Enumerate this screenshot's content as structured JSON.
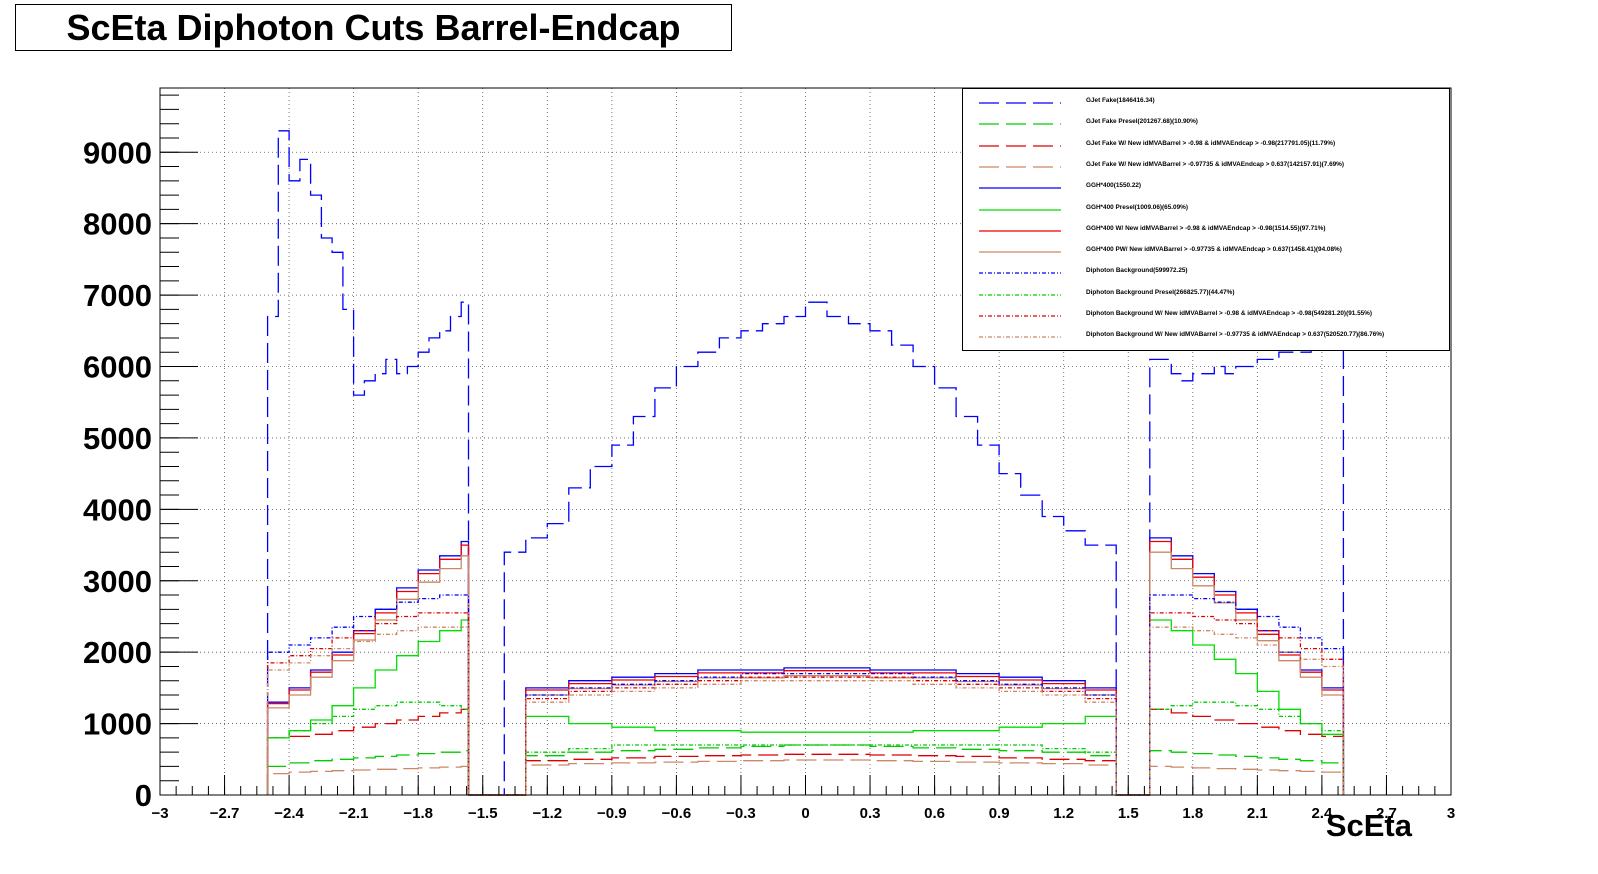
{
  "chart_data": {
    "type": "line",
    "title": "ScEta Diphoton Cuts Barrel-Endcap",
    "xlabel": "ScEta",
    "ylabel": "",
    "xlim": [
      -3,
      3
    ],
    "ylim": [
      0,
      9900
    ],
    "x_ticks": [
      -3,
      -2.7,
      -2.4,
      -2.1,
      -1.8,
      -1.5,
      -1.2,
      -0.9,
      -0.6,
      -0.3,
      0,
      0.3,
      0.6,
      0.9,
      1.2,
      1.5,
      1.8,
      2.1,
      2.4,
      2.7,
      3
    ],
    "x_tick_labels": [
      "−3",
      "−2.7",
      "−2.4",
      "−2.1",
      "−1.8",
      "−1.5",
      "−1.2",
      "−0.9",
      "−0.6",
      "−0.3",
      "0",
      "0.3",
      "0.6",
      "0.9",
      "1.2",
      "1.5",
      "1.8",
      "2.1",
      "2.4",
      "2.7",
      "3"
    ],
    "y_ticks": [
      0,
      1000,
      2000,
      3000,
      4000,
      5000,
      6000,
      7000,
      8000,
      9000
    ],
    "y_tick_labels": [
      "0",
      "1000",
      "2000",
      "3000",
      "4000",
      "5000",
      "6000",
      "7000",
      "8000",
      "9000"
    ],
    "grid": true,
    "legend_position": "top-right",
    "series": [
      {
        "name": "GJet Fake(1846416.34)",
        "color": "#0000ff",
        "dash": "long-dash",
        "x": [
          -2.5,
          -2.45,
          -2.4,
          -2.35,
          -2.3,
          -2.25,
          -2.2,
          -2.15,
          -2.1,
          -2.05,
          -2.0,
          -1.95,
          -1.9,
          -1.85,
          -1.8,
          -1.75,
          -1.7,
          -1.65,
          -1.6,
          -1.566,
          -1.4442,
          -1.4,
          -1.3,
          -1.2,
          -1.1,
          -1.0,
          -0.9,
          -0.8,
          -0.7,
          -0.6,
          -0.5,
          -0.4,
          -0.3,
          -0.2,
          -0.1,
          0.0,
          0.1,
          0.2,
          0.3,
          0.4,
          0.5,
          0.6,
          0.7,
          0.8,
          0.9,
          1.0,
          1.1,
          1.2,
          1.3,
          1.4442,
          1.566,
          1.6,
          1.65,
          1.7,
          1.75,
          1.8,
          1.85,
          1.9,
          1.95,
          2.0,
          2.05,
          2.1,
          2.15,
          2.2,
          2.25,
          2.3,
          2.35,
          2.4,
          2.45,
          2.5
        ],
        "y": [
          6700,
          9300,
          8600,
          8900,
          8400,
          7800,
          7600,
          6800,
          5600,
          5800,
          5900,
          6100,
          5900,
          6000,
          6200,
          6400,
          6500,
          6700,
          6900,
          0,
          0,
          3400,
          3600,
          3800,
          4300,
          4600,
          4900,
          5300,
          5700,
          6000,
          6200,
          6400,
          6500,
          6600,
          6700,
          6900,
          6700,
          6600,
          6500,
          6300,
          6000,
          5700,
          5300,
          4900,
          4500,
          4200,
          3900,
          3700,
          3500,
          0,
          0,
          6100,
          6100,
          5900,
          5800,
          5900,
          5900,
          6000,
          5900,
          6000,
          6000,
          6100,
          6100,
          6200,
          6200,
          6200,
          6300,
          6300,
          6300,
          0
        ]
      },
      {
        "name": "GJet Fake Presel(201267.68)(10.90%)",
        "color": "#00cc00",
        "dash": "long-dash",
        "x": [
          -2.5,
          -2.4,
          -2.3,
          -2.2,
          -2.1,
          -2.0,
          -1.9,
          -1.8,
          -1.7,
          -1.6,
          -1.566,
          -1.4442,
          -1.3,
          -1.1,
          -0.9,
          -0.7,
          -0.5,
          -0.3,
          -0.1,
          0.1,
          0.3,
          0.5,
          0.7,
          0.9,
          1.1,
          1.3,
          1.4442,
          1.566,
          1.6,
          1.7,
          1.8,
          1.9,
          2.0,
          2.1,
          2.2,
          2.3,
          2.4,
          2.5
        ],
        "y": [
          400,
          450,
          480,
          500,
          520,
          540,
          560,
          580,
          600,
          620,
          0,
          0,
          550,
          600,
          620,
          640,
          660,
          680,
          700,
          700,
          680,
          660,
          640,
          620,
          600,
          550,
          0,
          0,
          620,
          600,
          580,
          560,
          540,
          520,
          500,
          480,
          450,
          0
        ]
      },
      {
        "name": "GJet Fake W/ New idMVABarrel > -0.98 & idMVAEndcap > -0.98(217791.05)(11.79%)",
        "color": "#dd0000",
        "dash": "long-dash",
        "x": [
          -2.5,
          -2.4,
          -2.3,
          -2.2,
          -2.1,
          -2.0,
          -1.9,
          -1.8,
          -1.7,
          -1.6,
          -1.566,
          -1.4442,
          -1.3,
          -1.1,
          -0.9,
          -0.7,
          -0.5,
          -0.3,
          -0.1,
          0.1,
          0.3,
          0.5,
          0.7,
          0.9,
          1.1,
          1.3,
          1.4442,
          1.566,
          1.6,
          1.7,
          1.8,
          1.9,
          2.0,
          2.1,
          2.2,
          2.3,
          2.4,
          2.5
        ],
        "y": [
          800,
          820,
          850,
          900,
          950,
          1000,
          1050,
          1100,
          1150,
          1200,
          0,
          0,
          480,
          500,
          520,
          540,
          550,
          560,
          570,
          570,
          560,
          550,
          540,
          520,
          500,
          480,
          0,
          0,
          1200,
          1150,
          1100,
          1050,
          1000,
          950,
          900,
          850,
          820,
          0
        ]
      },
      {
        "name": "GJet Fake W/ New idMVABarrel > -0.97735 & idMVAEndcap > 0.637(142157.91)(7.69%)",
        "color": "#cc8866",
        "dash": "long-dash",
        "x": [
          -2.5,
          -2.4,
          -2.3,
          -2.2,
          -2.1,
          -2.0,
          -1.9,
          -1.8,
          -1.7,
          -1.6,
          -1.566,
          -1.4442,
          -1.3,
          -1.1,
          -0.9,
          -0.7,
          -0.5,
          -0.3,
          -0.1,
          0.1,
          0.3,
          0.5,
          0.7,
          0.9,
          1.1,
          1.3,
          1.4442,
          1.566,
          1.6,
          1.7,
          1.8,
          1.9,
          2.0,
          2.1,
          2.2,
          2.3,
          2.4,
          2.5
        ],
        "y": [
          300,
          320,
          330,
          340,
          350,
          360,
          370,
          380,
          390,
          400,
          0,
          0,
          420,
          440,
          450,
          460,
          470,
          480,
          490,
          490,
          480,
          470,
          460,
          450,
          440,
          420,
          0,
          0,
          400,
          390,
          380,
          370,
          360,
          350,
          340,
          330,
          320,
          0
        ]
      },
      {
        "name": "GGH*400(1550.22)",
        "color": "#0000ff",
        "dash": "solid",
        "x": [
          -2.5,
          -2.4,
          -2.3,
          -2.2,
          -2.1,
          -2.0,
          -1.9,
          -1.8,
          -1.7,
          -1.6,
          -1.566,
          -1.4442,
          -1.3,
          -1.1,
          -0.9,
          -0.7,
          -0.5,
          -0.3,
          -0.1,
          0.1,
          0.3,
          0.5,
          0.7,
          0.9,
          1.1,
          1.3,
          1.4442,
          1.566,
          1.6,
          1.7,
          1.8,
          1.9,
          2.0,
          2.1,
          2.2,
          2.3,
          2.4,
          2.5
        ],
        "y": [
          1300,
          1500,
          1750,
          2000,
          2300,
          2600,
          2900,
          3150,
          3350,
          3550,
          0,
          0,
          1500,
          1600,
          1650,
          1700,
          1750,
          1750,
          1780,
          1780,
          1750,
          1750,
          1700,
          1650,
          1600,
          1500,
          0,
          0,
          3600,
          3350,
          3100,
          2850,
          2600,
          2300,
          2000,
          1750,
          1500,
          0
        ]
      },
      {
        "name": "GGH*400 Presel(1009.06)(65.09%)",
        "color": "#00dd00",
        "dash": "solid",
        "x": [
          -2.5,
          -2.4,
          -2.3,
          -2.2,
          -2.1,
          -2.0,
          -1.9,
          -1.8,
          -1.7,
          -1.6,
          -1.566,
          -1.4442,
          -1.3,
          -1.1,
          -0.9,
          -0.7,
          -0.5,
          -0.3,
          -0.1,
          0.1,
          0.3,
          0.5,
          0.7,
          0.9,
          1.1,
          1.3,
          1.4442,
          1.566,
          1.6,
          1.7,
          1.8,
          1.9,
          2.0,
          2.1,
          2.2,
          2.3,
          2.4,
          2.5
        ],
        "y": [
          800,
          900,
          1050,
          1250,
          1500,
          1750,
          1950,
          2150,
          2300,
          2450,
          0,
          0,
          1100,
          1000,
          950,
          900,
          900,
          880,
          880,
          880,
          880,
          900,
          900,
          950,
          1000,
          1100,
          0,
          0,
          2450,
          2300,
          2100,
          1900,
          1700,
          1450,
          1200,
          1000,
          850,
          0
        ]
      },
      {
        "name": "GGH*400 W/ New idMVABarrel > -0.98 & idMVAEndcap > -0.98(1514.55)(97.71%)",
        "color": "#ee0000",
        "dash": "solid",
        "x": [
          -2.5,
          -2.4,
          -2.3,
          -2.2,
          -2.1,
          -2.0,
          -1.9,
          -1.8,
          -1.7,
          -1.6,
          -1.566,
          -1.4442,
          -1.3,
          -1.1,
          -0.9,
          -0.7,
          -0.5,
          -0.3,
          -0.1,
          0.1,
          0.3,
          0.5,
          0.7,
          0.9,
          1.1,
          1.3,
          1.4442,
          1.566,
          1.6,
          1.7,
          1.8,
          1.9,
          2.0,
          2.1,
          2.2,
          2.3,
          2.4,
          2.5
        ],
        "y": [
          1280,
          1470,
          1720,
          1960,
          2260,
          2550,
          2850,
          3100,
          3300,
          3500,
          0,
          0,
          1470,
          1560,
          1610,
          1660,
          1710,
          1710,
          1740,
          1740,
          1710,
          1710,
          1660,
          1610,
          1560,
          1470,
          0,
          0,
          3550,
          3300,
          3050,
          2800,
          2550,
          2250,
          1960,
          1720,
          1470,
          0
        ]
      },
      {
        "name": "GGH*400 PW/ New idMVABarrel > -0.97735 & idMVAEndcap > 0.637(1458.41)(94.08%)",
        "color": "#cc8866",
        "dash": "solid",
        "x": [
          -2.5,
          -2.4,
          -2.3,
          -2.2,
          -2.1,
          -2.0,
          -1.9,
          -1.8,
          -1.7,
          -1.6,
          -1.566,
          -1.4442,
          -1.3,
          -1.1,
          -0.9,
          -0.7,
          -0.5,
          -0.3,
          -0.1,
          0.1,
          0.3,
          0.5,
          0.7,
          0.9,
          1.1,
          1.3,
          1.4442,
          1.566,
          1.6,
          1.7,
          1.8,
          1.9,
          2.0,
          2.1,
          2.2,
          2.3,
          2.4,
          2.5
        ],
        "y": [
          1220,
          1400,
          1650,
          1880,
          2170,
          2450,
          2740,
          2980,
          3170,
          3350,
          0,
          0,
          1400,
          1490,
          1540,
          1590,
          1640,
          1640,
          1670,
          1670,
          1640,
          1640,
          1590,
          1540,
          1490,
          1400,
          0,
          0,
          3400,
          3170,
          2930,
          2690,
          2450,
          2160,
          1880,
          1650,
          1400,
          0
        ]
      },
      {
        "name": "Diphoton Background(599972.25)",
        "color": "#0000ff",
        "dash": "dash-dot",
        "x": [
          -2.5,
          -2.4,
          -2.3,
          -2.2,
          -2.1,
          -2.0,
          -1.9,
          -1.8,
          -1.7,
          -1.6,
          -1.566,
          -1.4442,
          -1.3,
          -1.1,
          -0.9,
          -0.7,
          -0.5,
          -0.3,
          -0.1,
          0.1,
          0.3,
          0.5,
          0.7,
          0.9,
          1.1,
          1.3,
          1.4442,
          1.566,
          1.6,
          1.7,
          1.8,
          1.9,
          2.0,
          2.1,
          2.2,
          2.3,
          2.4,
          2.5
        ],
        "y": [
          2000,
          2100,
          2200,
          2350,
          2500,
          2600,
          2700,
          2750,
          2800,
          2800,
          0,
          0,
          1400,
          1500,
          1550,
          1600,
          1650,
          1700,
          1700,
          1700,
          1700,
          1650,
          1600,
          1550,
          1500,
          1400,
          0,
          0,
          2800,
          2800,
          2750,
          2700,
          2600,
          2500,
          2350,
          2200,
          2050,
          0
        ]
      },
      {
        "name": "Diphoton Background Presel(266825.77)(44.47%)",
        "color": "#00cc00",
        "dash": "dash-dot",
        "x": [
          -2.5,
          -2.4,
          -2.3,
          -2.2,
          -2.1,
          -2.0,
          -1.9,
          -1.8,
          -1.7,
          -1.6,
          -1.566,
          -1.4442,
          -1.3,
          -1.1,
          -0.9,
          -0.7,
          -0.5,
          -0.3,
          -0.1,
          0.1,
          0.3,
          0.5,
          0.7,
          0.9,
          1.1,
          1.3,
          1.4442,
          1.566,
          1.6,
          1.7,
          1.8,
          1.9,
          2.0,
          2.1,
          2.2,
          2.3,
          2.4,
          2.5
        ],
        "y": [
          800,
          900,
          1000,
          1100,
          1200,
          1250,
          1300,
          1300,
          1250,
          1200,
          0,
          0,
          600,
          650,
          700,
          700,
          700,
          700,
          700,
          700,
          700,
          700,
          700,
          700,
          650,
          600,
          0,
          0,
          1200,
          1250,
          1300,
          1300,
          1250,
          1200,
          1100,
          1000,
          900,
          0
        ]
      },
      {
        "name": "Diphoton Background W/ New idMVABarrel > -0.98 & idMVAEndcap > -0.98(549281.20)(91.55%)",
        "color": "#dd0000",
        "dash": "dash-dot",
        "x": [
          -2.5,
          -2.4,
          -2.3,
          -2.2,
          -2.1,
          -2.0,
          -1.9,
          -1.8,
          -1.7,
          -1.6,
          -1.566,
          -1.4442,
          -1.3,
          -1.1,
          -0.9,
          -0.7,
          -0.5,
          -0.3,
          -0.1,
          0.1,
          0.3,
          0.5,
          0.7,
          0.9,
          1.1,
          1.3,
          1.4442,
          1.566,
          1.6,
          1.7,
          1.8,
          1.9,
          2.0,
          2.1,
          2.2,
          2.3,
          2.4,
          2.5
        ],
        "y": [
          1850,
          1950,
          2050,
          2200,
          2300,
          2400,
          2500,
          2550,
          2550,
          2550,
          0,
          0,
          1350,
          1450,
          1500,
          1550,
          1600,
          1650,
          1650,
          1650,
          1650,
          1600,
          1550,
          1500,
          1450,
          1350,
          0,
          0,
          2550,
          2550,
          2500,
          2450,
          2400,
          2300,
          2200,
          2050,
          1900,
          0
        ]
      },
      {
        "name": "Diphoton Background W/ New idMVABarrel > -0.97735 & idMVAEndcap > 0.637(520520.77)(86.76%)",
        "color": "#cc8866",
        "dash": "dash-dot",
        "x": [
          -2.5,
          -2.4,
          -2.3,
          -2.2,
          -2.1,
          -2.0,
          -1.9,
          -1.8,
          -1.7,
          -1.6,
          -1.566,
          -1.4442,
          -1.3,
          -1.1,
          -0.9,
          -0.7,
          -0.5,
          -0.3,
          -0.1,
          0.1,
          0.3,
          0.5,
          0.7,
          0.9,
          1.1,
          1.3,
          1.4442,
          1.566,
          1.6,
          1.7,
          1.8,
          1.9,
          2.0,
          2.1,
          2.2,
          2.3,
          2.4,
          2.5
        ],
        "y": [
          1750,
          1850,
          1950,
          2050,
          2150,
          2250,
          2300,
          2350,
          2350,
          2350,
          0,
          0,
          1300,
          1400,
          1450,
          1500,
          1550,
          1600,
          1600,
          1600,
          1600,
          1550,
          1500,
          1450,
          1400,
          1300,
          0,
          0,
          2350,
          2350,
          2300,
          2250,
          2200,
          2100,
          2000,
          1900,
          1800,
          0
        ]
      }
    ]
  }
}
